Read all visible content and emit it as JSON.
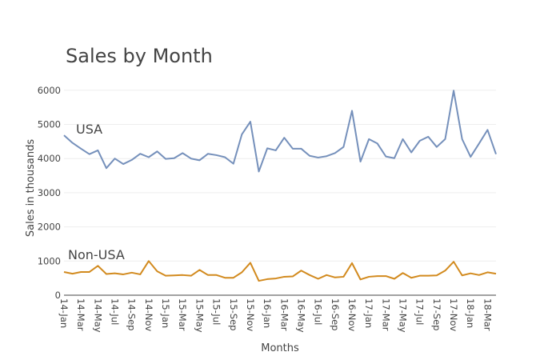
{
  "chart_data": {
    "type": "line",
    "title": "Sales by Month",
    "xlabel": "Months",
    "ylabel": "Sales in thousands",
    "ylim": [
      0,
      6300
    ],
    "y_ticks": [
      0,
      1000,
      2000,
      3000,
      4000,
      5000,
      6000
    ],
    "x_tick_labels": [
      "14-Jan",
      "14-Mar",
      "14-May",
      "14-Jul",
      "14-Sep",
      "14-Nov",
      "15-Jan",
      "15-Mar",
      "15-May",
      "15-Jul",
      "15-Sep",
      "15-Nov",
      "16-Jan",
      "16-Mar",
      "16-May",
      "16-Jul",
      "16-Sep",
      "16-Nov",
      "17-Jan",
      "17-Mar",
      "17-May",
      "17-Jul",
      "17-Sep",
      "17-Nov",
      "18-Jan",
      "18-Mar"
    ],
    "x": [
      "14-Jan",
      "14-Feb",
      "14-Mar",
      "14-Apr",
      "14-May",
      "14-Jun",
      "14-Jul",
      "14-Aug",
      "14-Sep",
      "14-Oct",
      "14-Nov",
      "14-Dec",
      "15-Jan",
      "15-Feb",
      "15-Mar",
      "15-Apr",
      "15-May",
      "15-Jun",
      "15-Jul",
      "15-Aug",
      "15-Sep",
      "15-Oct",
      "15-Nov",
      "15-Dec",
      "16-Jan",
      "16-Feb",
      "16-Mar",
      "16-Apr",
      "16-May",
      "16-Jun",
      "16-Jul",
      "16-Aug",
      "16-Sep",
      "16-Oct",
      "16-Nov",
      "16-Dec",
      "17-Jan",
      "17-Feb",
      "17-Mar",
      "17-Apr",
      "17-May",
      "17-Jun",
      "17-Jul",
      "17-Aug",
      "17-Sep",
      "17-Oct",
      "17-Nov",
      "17-Dec",
      "18-Jan",
      "18-Feb",
      "18-Mar",
      "18-Apr"
    ],
    "grid": true,
    "series": [
      {
        "name": "USA",
        "color": "#7590bb",
        "values": [
          4680,
          4460,
          4290,
          4130,
          4240,
          3720,
          4000,
          3840,
          3960,
          4140,
          4040,
          4210,
          3990,
          4010,
          4160,
          4000,
          3950,
          4140,
          4100,
          4040,
          3850,
          4710,
          5080,
          3620,
          4300,
          4240,
          4610,
          4290,
          4290,
          4080,
          4030,
          4070,
          4160,
          4340,
          5400,
          3910,
          4570,
          4440,
          4060,
          4010,
          4570,
          4180,
          4520,
          4640,
          4340,
          4570,
          5990,
          4570,
          4050,
          4440,
          4840,
          4130
        ]
      },
      {
        "name": "Non-USA",
        "color": "#d28a1e",
        "values": [
          680,
          630,
          680,
          680,
          860,
          620,
          640,
          610,
          660,
          610,
          1000,
          700,
          570,
          580,
          590,
          570,
          740,
          590,
          590,
          510,
          510,
          670,
          950,
          420,
          470,
          490,
          540,
          550,
          720,
          590,
          480,
          590,
          520,
          540,
          940,
          460,
          540,
          560,
          560,
          480,
          650,
          510,
          570,
          570,
          580,
          720,
          980,
          580,
          640,
          590,
          670,
          630
        ]
      }
    ]
  }
}
